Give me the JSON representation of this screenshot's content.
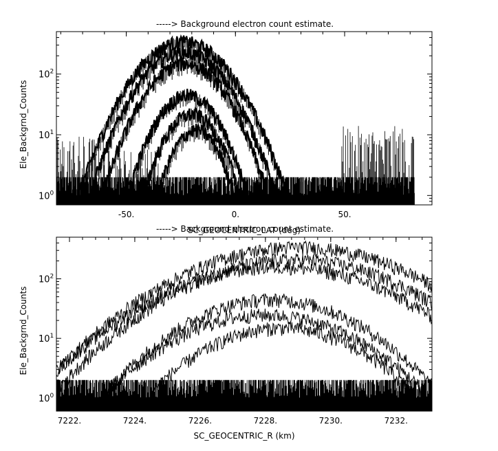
{
  "chart_data": [
    {
      "type": "line",
      "title": "-----> Background electron count estimate.",
      "xlabel": "SC_GEOCENTRIC_LAT (deg)",
      "ylabel": "Ele_Backgrnd_Counts",
      "xlim": [
        -82,
        90
      ],
      "ylim": [
        0.7,
        500
      ],
      "yscale": "log",
      "grid": false,
      "x_ticks": [
        -50,
        0,
        50
      ],
      "x_tick_labels": [
        "-50.",
        "0.",
        "50."
      ],
      "y_ticks": [
        1,
        10,
        100
      ],
      "y_tick_labels": [
        [
          "10",
          "0"
        ],
        [
          "10",
          "1"
        ],
        [
          "10",
          "2"
        ]
      ],
      "data_extent_x": [
        -82,
        82
      ],
      "noise_floor": [
        1,
        2
      ],
      "background_bands": [
        {
          "x_range": [
            -82,
            -60
          ],
          "max": 10
        },
        {
          "x_range": [
            -60,
            -35
          ],
          "max": 6
        },
        {
          "x_range": [
            5,
            48
          ],
          "max": 2
        },
        {
          "x_range": [
            48,
            82
          ],
          "max": 14
        }
      ],
      "series": [
        {
          "peak_x": -24,
          "peak_y": 340,
          "width": 14
        },
        {
          "peak_x": -24,
          "peak_y": 230,
          "width": 13
        },
        {
          "peak_x": -23,
          "peak_y": 150,
          "width": 12
        },
        {
          "peak_x": -22,
          "peak_y": 45,
          "width": 10
        },
        {
          "peak_x": -20,
          "peak_y": 22,
          "width": 9
        },
        {
          "peak_x": -18,
          "peak_y": 12,
          "width": 8
        }
      ]
    },
    {
      "type": "line",
      "title": "-----> Background electron count estimate.",
      "xlabel": "SC_GEOCENTRIC_R (km)",
      "ylabel": "Ele_Backgrnd_Counts",
      "xlim": [
        7221.6,
        7233.1
      ],
      "ylim": [
        0.6,
        500
      ],
      "yscale": "log",
      "grid": false,
      "x_ticks": [
        7222,
        7224,
        7226,
        7228,
        7230,
        7232
      ],
      "x_tick_labels": [
        "7222.",
        "7224.",
        "7226.",
        "7228.",
        "7230.",
        "7232."
      ],
      "y_ticks": [
        1,
        10,
        100
      ],
      "y_tick_labels": [
        [
          "10",
          "0"
        ],
        [
          "10",
          "1"
        ],
        [
          "10",
          "2"
        ]
      ],
      "noise_floor": [
        1,
        2
      ],
      "series": [
        {
          "peak_x": 7229.0,
          "peak_y": 340,
          "width": 2.4
        },
        {
          "peak_x": 7228.9,
          "peak_y": 210,
          "width": 2.3
        },
        {
          "peak_x": 7228.4,
          "peak_y": 160,
          "width": 2.4
        },
        {
          "peak_x": 7228.2,
          "peak_y": 45,
          "width": 1.9
        },
        {
          "peak_x": 7228.0,
          "peak_y": 25,
          "width": 2.0
        },
        {
          "peak_x": 7228.5,
          "peak_y": 15,
          "width": 1.8
        }
      ]
    }
  ]
}
